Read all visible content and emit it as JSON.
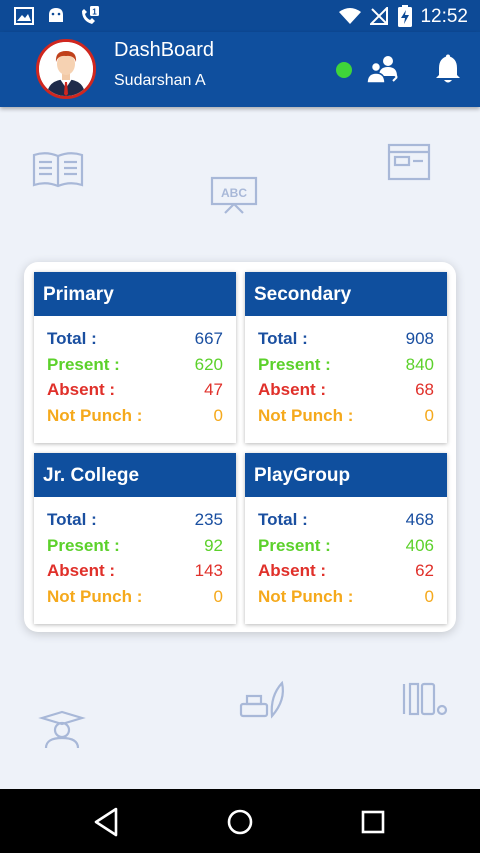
{
  "status_bar": {
    "time": "12:52",
    "icons": [
      "image-icon",
      "android-icon",
      "missed-call-icon",
      "wifi-icon",
      "no-signal-icon",
      "battery-charging-icon"
    ]
  },
  "header": {
    "title": "DashBoard",
    "user_name": "Sudarshan A",
    "status_color": "#3fd43a",
    "actions": [
      "group-icon",
      "bell-icon"
    ]
  },
  "labels": {
    "total": "Total :",
    "present": "Present :",
    "absent": "Absent :",
    "not_punch": "Not Punch :"
  },
  "cards": [
    {
      "title": "Primary",
      "total": "667",
      "present": "620",
      "absent": "47",
      "not_punch": "0"
    },
    {
      "title": "Secondary",
      "total": "908",
      "present": "840",
      "absent": "68",
      "not_punch": "0"
    },
    {
      "title": "Jr. College",
      "total": "235",
      "present": "92",
      "absent": "143",
      "not_punch": "0"
    },
    {
      "title": "PlayGroup",
      "total": "468",
      "present": "406",
      "absent": "62",
      "not_punch": "0"
    }
  ],
  "colors": {
    "primary_blue": "#0f4f9e",
    "total": "#1a4fa0",
    "present": "#5cd12b",
    "absent": "#e0302a",
    "not_punch": "#f5a91c"
  },
  "nav": [
    "back-icon",
    "home-icon",
    "recents-icon"
  ]
}
